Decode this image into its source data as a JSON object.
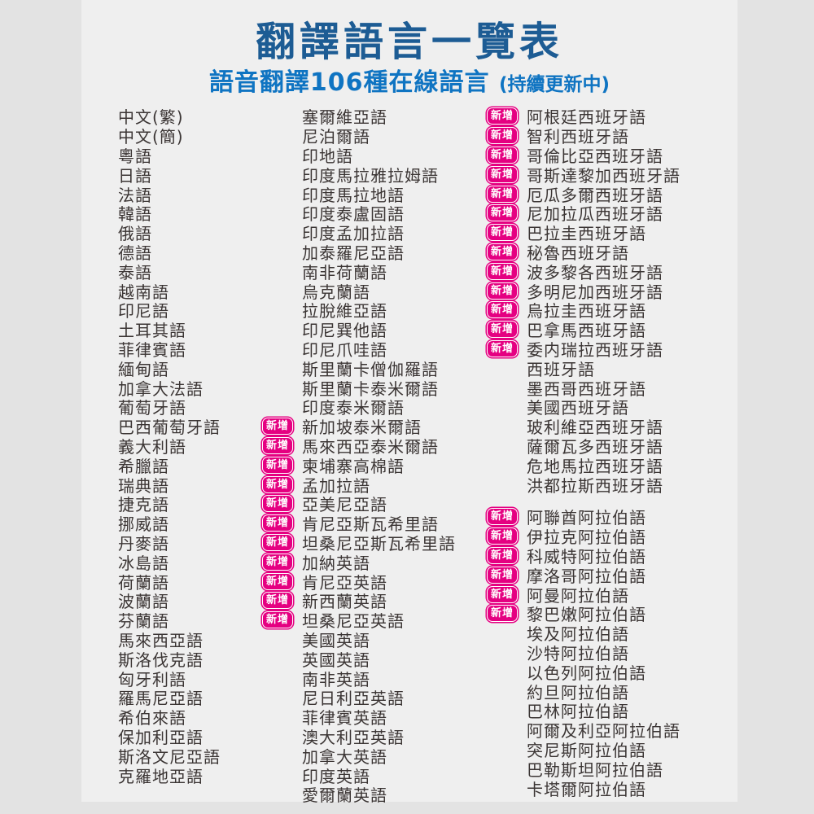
{
  "header": {
    "title": "翻譯語言一覽表",
    "subtitle": "語音翻譯106種在線語言",
    "subtitle_note": "(持續更新中)"
  },
  "badge_label": "新增",
  "colors": {
    "title": "#1d5c94",
    "subtitle": "#0f74c2",
    "badge": "#e50081",
    "badge_text": "#ffffff",
    "text": "#3b3534",
    "card_bg": "#efefef",
    "page_bg": "#e3e3e3"
  },
  "columns": {
    "col1": {
      "has_badges": false,
      "items": [
        {
          "label": "中文(繁)",
          "new": false
        },
        {
          "label": "中文(簡)",
          "new": false
        },
        {
          "label": "粵語",
          "new": false
        },
        {
          "label": "日語",
          "new": false
        },
        {
          "label": "法語",
          "new": false
        },
        {
          "label": "韓語",
          "new": false
        },
        {
          "label": "俄語",
          "new": false
        },
        {
          "label": "德語",
          "new": false
        },
        {
          "label": "泰語",
          "new": false
        },
        {
          "label": "越南語",
          "new": false
        },
        {
          "label": "印尼語",
          "new": false
        },
        {
          "label": "土耳其語",
          "new": false
        },
        {
          "label": "菲律賓語",
          "new": false
        },
        {
          "label": "緬甸語",
          "new": false
        },
        {
          "label": "加拿大法語",
          "new": false
        },
        {
          "label": "葡萄牙語",
          "new": false
        },
        {
          "label": "巴西葡萄牙語",
          "new": false
        },
        {
          "label": "義大利語",
          "new": false
        },
        {
          "label": "希臘語",
          "new": false
        },
        {
          "label": "瑞典語",
          "new": false
        },
        {
          "label": "捷克語",
          "new": false
        },
        {
          "label": "挪威語",
          "new": false
        },
        {
          "label": "丹麥語",
          "new": false
        },
        {
          "label": "冰島語",
          "new": false
        },
        {
          "label": "荷蘭語",
          "new": false
        },
        {
          "label": "波蘭語",
          "new": false
        },
        {
          "label": "芬蘭語",
          "new": false
        },
        {
          "label": "馬來西亞語",
          "new": false
        },
        {
          "label": "斯洛伐克語",
          "new": false
        },
        {
          "label": "匈牙利語",
          "new": false
        },
        {
          "label": "羅馬尼亞語",
          "new": false
        },
        {
          "label": "希伯來語",
          "new": false
        },
        {
          "label": "保加利亞語",
          "new": false
        },
        {
          "label": "斯洛文尼亞語",
          "new": false
        },
        {
          "label": "克羅地亞語",
          "new": false
        }
      ]
    },
    "col2": {
      "has_badges": true,
      "items": [
        {
          "label": "塞爾維亞語",
          "new": false
        },
        {
          "label": "尼泊爾語",
          "new": false
        },
        {
          "label": "印地語",
          "new": false
        },
        {
          "label": "印度馬拉雅拉姆語",
          "new": false
        },
        {
          "label": "印度馬拉地語",
          "new": false
        },
        {
          "label": "印度泰盧固語",
          "new": false
        },
        {
          "label": "印度孟加拉語",
          "new": false
        },
        {
          "label": "加泰羅尼亞語",
          "new": false
        },
        {
          "label": "南非荷蘭語",
          "new": false
        },
        {
          "label": "烏克蘭語",
          "new": false
        },
        {
          "label": "拉脫維亞語",
          "new": false
        },
        {
          "label": "印尼巽他語",
          "new": false
        },
        {
          "label": "印尼爪哇語",
          "new": false
        },
        {
          "label": "斯里蘭卡僧伽羅語",
          "new": false
        },
        {
          "label": "斯里蘭卡泰米爾語",
          "new": false
        },
        {
          "label": "印度泰米爾語",
          "new": false
        },
        {
          "label": "新加坡泰米爾語",
          "new": true
        },
        {
          "label": "馬來西亞泰米爾語",
          "new": true
        },
        {
          "label": "柬埔寨高棉語",
          "new": true
        },
        {
          "label": "孟加拉語",
          "new": true
        },
        {
          "label": "亞美尼亞語",
          "new": true
        },
        {
          "label": "肯尼亞斯瓦希里語",
          "new": true
        },
        {
          "label": "坦桑尼亞斯瓦希里語",
          "new": true
        },
        {
          "label": "加納英語",
          "new": true
        },
        {
          "label": "肯尼亞英語",
          "new": true
        },
        {
          "label": "新西蘭英語",
          "new": true
        },
        {
          "label": "坦桑尼亞英語",
          "new": true
        },
        {
          "label": "美國英語",
          "new": false
        },
        {
          "label": "英國英語",
          "new": false
        },
        {
          "label": "南非英語",
          "new": false
        },
        {
          "label": "尼日利亞英語",
          "new": false
        },
        {
          "label": "菲律賓英語",
          "new": false
        },
        {
          "label": "澳大利亞英語",
          "new": false
        },
        {
          "label": "加拿大英語",
          "new": false
        },
        {
          "label": "印度英語",
          "new": false
        },
        {
          "label": "愛爾蘭英語",
          "new": false
        }
      ]
    },
    "col3": {
      "has_badges": true,
      "items": [
        {
          "label": "阿根廷西班牙語",
          "new": true
        },
        {
          "label": "智利西班牙語",
          "new": true
        },
        {
          "label": "哥倫比亞西班牙語",
          "new": true
        },
        {
          "label": "哥斯達黎加西班牙語",
          "new": true
        },
        {
          "label": "厄瓜多爾西班牙語",
          "new": true
        },
        {
          "label": "尼加拉瓜西班牙語",
          "new": true
        },
        {
          "label": "巴拉圭西班牙語",
          "new": true
        },
        {
          "label": "秘魯西班牙語",
          "new": true
        },
        {
          "label": "波多黎各西班牙語",
          "new": true
        },
        {
          "label": "多明尼加西班牙語",
          "new": true
        },
        {
          "label": "烏拉圭西班牙語",
          "new": true
        },
        {
          "label": "巴拿馬西班牙語",
          "new": true
        },
        {
          "label": "委内瑞拉西班牙語",
          "new": true
        },
        {
          "label": "西班牙語",
          "new": false
        },
        {
          "label": "墨西哥西班牙語",
          "new": false
        },
        {
          "label": "美國西班牙語",
          "new": false
        },
        {
          "label": "玻利維亞西班牙語",
          "new": false
        },
        {
          "label": "薩爾瓦多西班牙語",
          "new": false
        },
        {
          "label": "危地馬拉西班牙語",
          "new": false
        },
        {
          "label": "洪都拉斯西班牙語",
          "new": false
        },
        {
          "label": "阿聯酋阿拉伯語",
          "new": true,
          "gap_before": true
        },
        {
          "label": "伊拉克阿拉伯語",
          "new": true
        },
        {
          "label": "科威特阿拉伯語",
          "new": true
        },
        {
          "label": "摩洛哥阿拉伯語",
          "new": true
        },
        {
          "label": "阿曼阿拉伯語",
          "new": true
        },
        {
          "label": "黎巴嫩阿拉伯語",
          "new": true
        },
        {
          "label": "埃及阿拉伯語",
          "new": false
        },
        {
          "label": "沙特阿拉伯語",
          "new": false
        },
        {
          "label": "以色列阿拉伯語",
          "new": false
        },
        {
          "label": "約旦阿拉伯語",
          "new": false
        },
        {
          "label": "巴林阿拉伯語",
          "new": false
        },
        {
          "label": "阿爾及利亞阿拉伯語",
          "new": false
        },
        {
          "label": "突尼斯阿拉伯語",
          "new": false
        },
        {
          "label": "巴勒斯坦阿拉伯語",
          "new": false
        },
        {
          "label": "卡塔爾阿拉伯語",
          "new": false
        }
      ]
    }
  }
}
